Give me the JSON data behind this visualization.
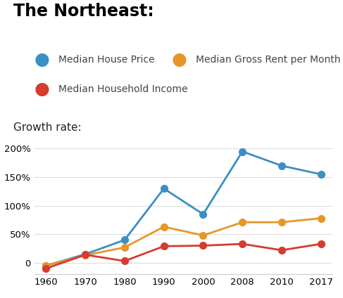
{
  "title": "The Northeast:",
  "ylabel": "Growth rate:",
  "house_price_x": [
    1960,
    1970,
    1980,
    1990,
    2000,
    2008,
    2010,
    2017
  ],
  "house_price_y": [
    -5,
    15,
    40,
    130,
    85,
    195,
    170,
    155
  ],
  "gross_rent_y": [
    -5,
    13,
    27,
    63,
    48,
    71,
    71,
    78
  ],
  "household_income_y": [
    -10,
    14,
    3,
    29,
    30,
    33,
    22,
    33
  ],
  "house_price_color": "#3a8fc4",
  "gross_rent_color": "#e8962a",
  "household_income_color": "#d63b2e",
  "ylim": [
    -20,
    215
  ],
  "yticks": [
    0,
    50,
    100,
    150,
    200
  ],
  "ytick_labels": [
    "0",
    "50%",
    "100%",
    "150%",
    "200%"
  ],
  "xtick_labels": [
    "1960",
    "1970",
    "1980",
    "1990",
    "2000",
    "2008",
    "2010",
    "2017"
  ],
  "marker_size": 7,
  "line_width": 2.0,
  "legend1_label": "Median House Price",
  "legend2_label": "Median Gross Rent per Month",
  "legend3_label": "Median Household Income",
  "background_color": "#ffffff",
  "title_fontsize": 17,
  "ylabel_fontsize": 11,
  "legend_fontsize": 10,
  "tick_fontsize": 9.5
}
